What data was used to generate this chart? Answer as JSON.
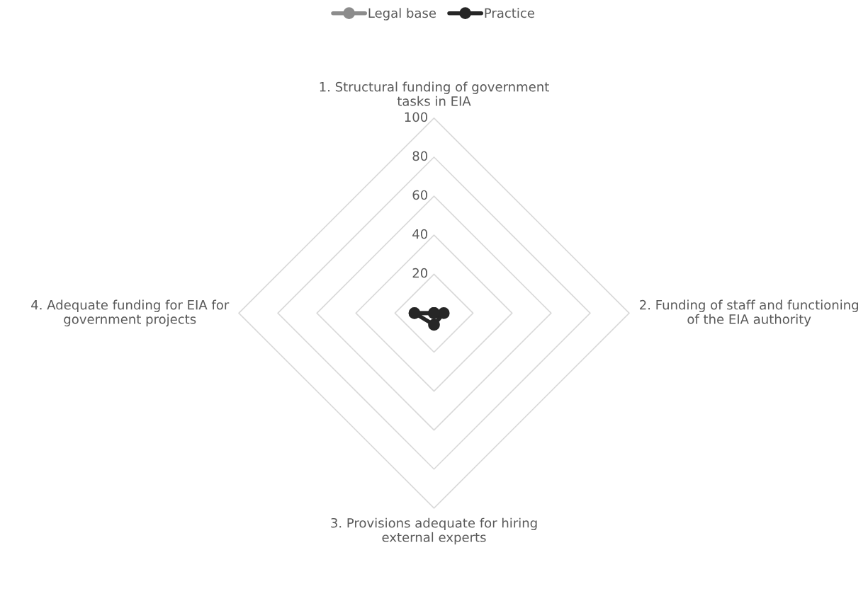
{
  "chart_data": {
    "type": "radar",
    "categories": [
      "1. Structural funding of government tasks in EIA",
      "2. Funding of staff and functioning of the EIA authority",
      "3. Provisions adequate for hiring external experts",
      "4. Adequate funding for EIA for government projects"
    ],
    "series": [
      {
        "name": "Legal base",
        "color": "#8c8c8c",
        "values": [
          0,
          0,
          0,
          10
        ]
      },
      {
        "name": "Practice",
        "color": "#262626",
        "values": [
          0,
          5,
          6,
          10
        ]
      }
    ],
    "ylim": [
      0,
      100
    ],
    "yticks": [
      20,
      40,
      60,
      80,
      100
    ],
    "grid": true,
    "legend": "top",
    "marker": "circle"
  }
}
